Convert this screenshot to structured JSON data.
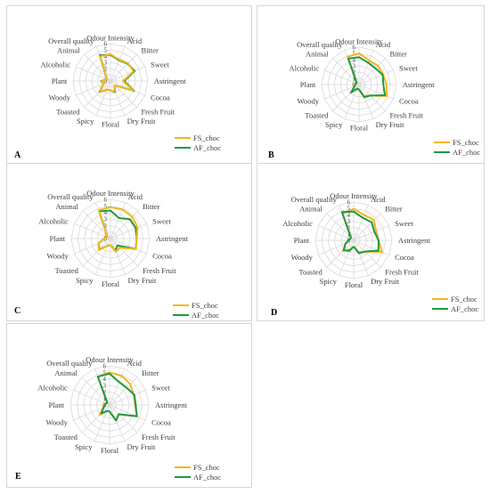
{
  "colors": {
    "FS_choc": "#f2b61d",
    "AF_choc": "#1f9a3f",
    "grid": "#d9d9d9"
  },
  "chart_data": [
    {
      "type": "radar",
      "panel": "A",
      "rlim": [
        0,
        6
      ],
      "ticks": [
        "0",
        "1",
        "2",
        "3",
        "4",
        "5",
        "6"
      ],
      "axes": [
        "Odour Intensity",
        "Acid",
        "Bitter",
        "Sweet",
        "Astringent",
        "Cocoa",
        "Fresh Fruit",
        "Dry Fruit",
        "Floral",
        "Spicy",
        "Toasted",
        "Woody",
        "Plant",
        "Alcoholic",
        "Animal",
        "Overall quality"
      ],
      "legend": [
        "FS_choc",
        "AF_choc"
      ],
      "legend_position": "bottom-right",
      "series": [
        {
          "name": "FS_choc",
          "values": [
            4.3,
            3.7,
            4.0,
            4.0,
            2.0,
            4.0,
            1.0,
            1.8,
            1.5,
            1.5,
            2.4,
            1.2,
            1.4,
            0.6,
            1.0,
            4.3
          ]
        },
        {
          "name": "AF_choc",
          "values": [
            4.2,
            3.6,
            3.9,
            4.2,
            2.2,
            4.1,
            1.0,
            1.9,
            1.5,
            1.5,
            2.5,
            1.2,
            1.5,
            0.6,
            1.0,
            4.5
          ]
        }
      ]
    },
    {
      "type": "radar",
      "panel": "B",
      "rlim": [
        0,
        6
      ],
      "ticks": [
        "0",
        "1",
        "2",
        "3",
        "4",
        "5",
        "6"
      ],
      "axes": [
        "Odour Intensity",
        "Acid",
        "Bitter",
        "Sweet",
        "Astringent",
        "Cocoa",
        "Fresh Fruit",
        "Dry Fruit",
        "Floral",
        "Spicy",
        "Toasted",
        "Woody",
        "Plant",
        "Alcoholic",
        "Animal",
        "Overall quality"
      ],
      "legend": [
        "FS_choc",
        "AF_choc"
      ],
      "legend_position": "bottom-right",
      "series": [
        {
          "name": "FS_choc",
          "values": [
            5.0,
            4.2,
            4.3,
            4.2,
            4.4,
            4.8,
            2.5,
            2.0,
            0.8,
            0.7,
            1.8,
            0.8,
            0.6,
            0.4,
            0.6,
            4.8
          ]
        },
        {
          "name": "AF_choc",
          "values": [
            4.4,
            3.8,
            3.7,
            4.1,
            3.9,
            4.5,
            2.5,
            2.2,
            0.8,
            0.7,
            1.8,
            0.8,
            0.6,
            0.5,
            0.6,
            4.5
          ]
        }
      ]
    },
    {
      "type": "radar",
      "panel": "C",
      "rlim": [
        0,
        6
      ],
      "ticks": [
        "0",
        "1",
        "2",
        "3",
        "4",
        "5",
        "6"
      ],
      "axes": [
        "Odour Intensity",
        "Acid",
        "Bitter",
        "Sweet",
        "Astringent",
        "Cocoa",
        "Fresh Fruit",
        "Dry Fruit",
        "Floral",
        "Spicy",
        "Toasted",
        "Woody",
        "Plant",
        "Alcoholic",
        "Animal",
        "Overall quality"
      ],
      "legend": [
        "FS_choc",
        "AF_choc"
      ],
      "legend_position": "bottom-right",
      "series": [
        {
          "name": "FS_choc",
          "values": [
            4.8,
            4.8,
            4.7,
            4.5,
            4.0,
            4.2,
            2.0,
            2.2,
            1.0,
            1.2,
            2.5,
            2.0,
            1.0,
            0.5,
            0.8,
            4.7
          ]
        },
        {
          "name": "AF_choc",
          "values": [
            4.3,
            3.4,
            4.2,
            4.2,
            4.0,
            4.2,
            1.5,
            2.0,
            1.0,
            1.2,
            2.4,
            2.0,
            1.0,
            0.6,
            0.8,
            4.5
          ]
        }
      ]
    },
    {
      "type": "radar",
      "panel": "D",
      "rlim": [
        0,
        6
      ],
      "ticks": [
        "0",
        "1",
        "2",
        "3",
        "4",
        "5",
        "6"
      ],
      "axes": [
        "Odour Intensity",
        "Acid",
        "Bitter",
        "Sweet",
        "Astringent",
        "Cocoa",
        "Fresh Fruit",
        "Dry Fruit",
        "Floral",
        "Spicy",
        "Toasted",
        "Woody",
        "Plant",
        "Alcoholic",
        "Animal",
        "Overall quality"
      ],
      "legend": [
        "FS_choc",
        "AF_choc"
      ],
      "legend_position": "bottom-right",
      "series": [
        {
          "name": "FS_choc",
          "values": [
            4.9,
            4.3,
            4.5,
            3.8,
            3.9,
            4.8,
            2.5,
            2.0,
            1.0,
            1.5,
            2.4,
            1.4,
            0.8,
            0.6,
            0.6,
            4.5
          ]
        },
        {
          "name": "AF_choc",
          "values": [
            4.5,
            3.8,
            4.0,
            3.5,
            3.9,
            4.2,
            2.5,
            2.2,
            1.0,
            1.8,
            2.2,
            1.4,
            0.8,
            0.6,
            0.6,
            4.8
          ]
        }
      ]
    },
    {
      "type": "radar",
      "panel": "E",
      "rlim": [
        0,
        6
      ],
      "ticks": [
        "0",
        "1",
        "2",
        "3",
        "4",
        "5",
        "6"
      ],
      "axes": [
        "Odour Intensity",
        "Acid",
        "Bitter",
        "Sweet",
        "Astringent",
        "Cocoa",
        "Fresh Fruit",
        "Dry Fruit",
        "Floral",
        "Spicy",
        "Toasted",
        "Woody",
        "Plant",
        "Alcoholic",
        "Animal",
        "Overall quality"
      ],
      "legend": [
        "FS_choc",
        "AF_choc"
      ],
      "legend_position": "bottom-right",
      "series": [
        {
          "name": "FS_choc",
          "values": [
            5.0,
            4.8,
            4.5,
            4.0,
            3.9,
            4.6,
            2.0,
            2.5,
            1.0,
            1.0,
            2.2,
            1.0,
            1.0,
            0.6,
            0.5,
            4.7
          ]
        },
        {
          "name": "AF_choc",
          "values": [
            4.8,
            3.8,
            3.7,
            4.1,
            4.0,
            4.5,
            2.0,
            2.6,
            1.0,
            1.0,
            1.8,
            1.0,
            0.7,
            0.6,
            0.5,
            4.7
          ]
        }
      ]
    }
  ]
}
